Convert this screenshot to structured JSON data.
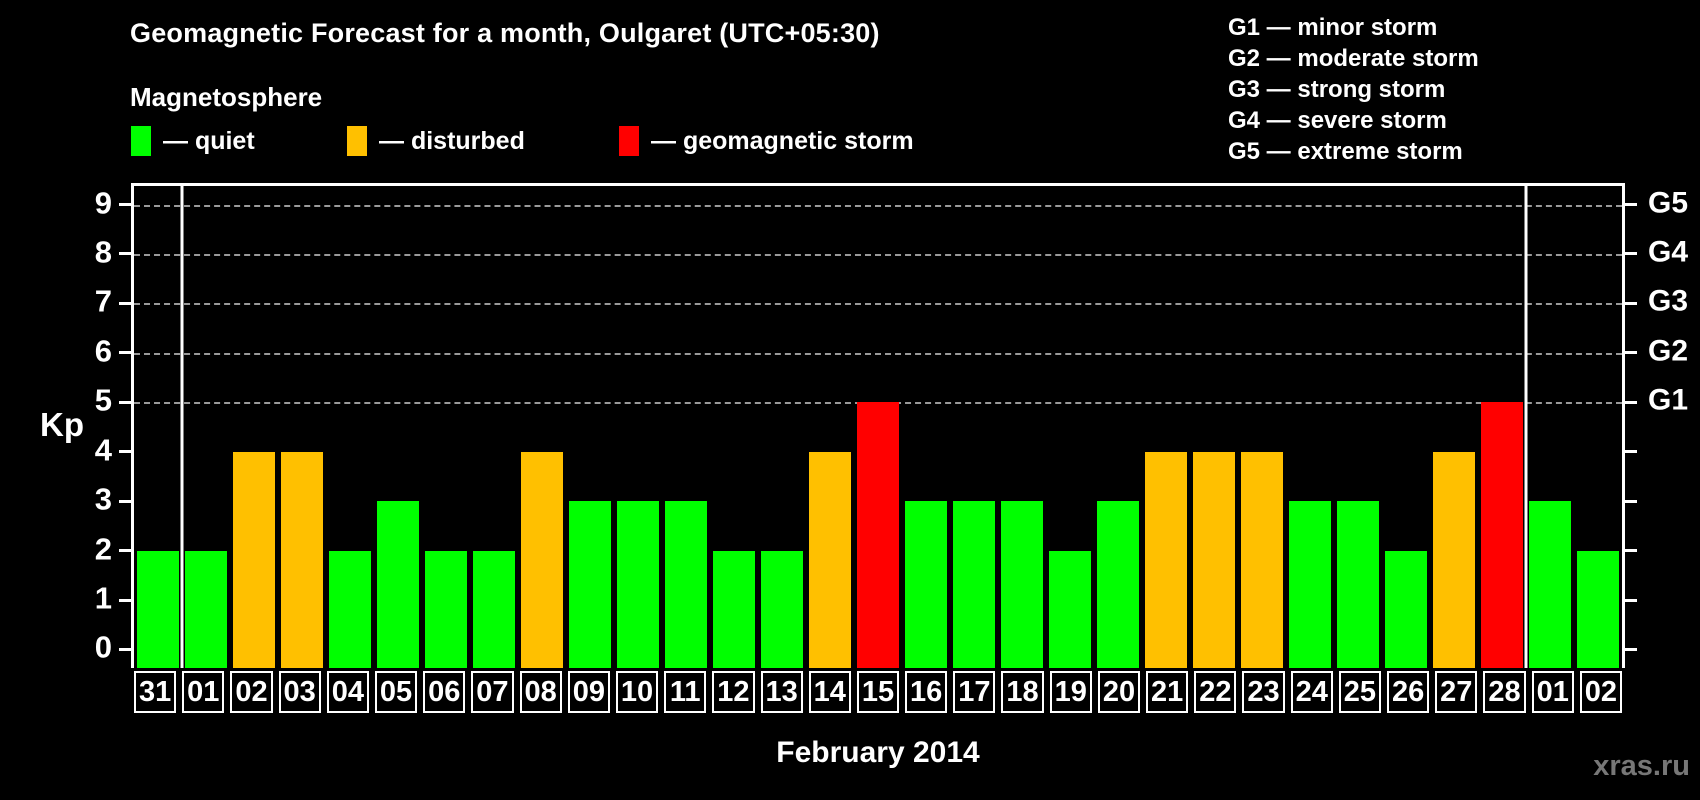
{
  "title": "Geomagnetic Forecast for a month, Oulgaret (UTC+05:30)",
  "legend": {
    "heading": "Magnetosphere",
    "items": [
      {
        "key": "quiet",
        "label": "— quiet",
        "color": "#00ff00"
      },
      {
        "key": "disturbed",
        "label": "— disturbed",
        "color": "#ffc000"
      },
      {
        "key": "storm",
        "label": "— geomagnetic storm",
        "color": "#ff0000"
      }
    ]
  },
  "storm_scale": [
    {
      "label": "G1 — minor storm"
    },
    {
      "label": "G2 — moderate storm"
    },
    {
      "label": "G3 — strong storm"
    },
    {
      "label": "G4 — severe storm"
    },
    {
      "label": "G5 — extreme storm"
    }
  ],
  "chart_data": {
    "type": "bar",
    "title": "Geomagnetic Forecast for a month, Oulgaret (UTC+05:30)",
    "xlabel": "February 2014",
    "ylabel": "Kp",
    "ylim": [
      0,
      9
    ],
    "categories": [
      "31",
      "01",
      "02",
      "03",
      "04",
      "05",
      "06",
      "07",
      "08",
      "09",
      "10",
      "11",
      "12",
      "13",
      "14",
      "15",
      "16",
      "17",
      "18",
      "19",
      "20",
      "21",
      "22",
      "23",
      "24",
      "25",
      "26",
      "27",
      "28",
      "01",
      "02"
    ],
    "values": [
      2,
      2,
      4,
      4,
      2,
      3,
      2,
      2,
      4,
      3,
      3,
      3,
      2,
      2,
      4,
      5,
      3,
      3,
      3,
      2,
      3,
      4,
      4,
      4,
      3,
      3,
      2,
      4,
      5,
      3,
      2
    ],
    "thresholds": {
      "disturbed_min": 4,
      "storm_min": 5
    },
    "colors": {
      "quiet": "#00ff00",
      "disturbed": "#ffc000",
      "storm": "#ff0000"
    },
    "y_ticks": [
      0,
      1,
      2,
      3,
      4,
      5,
      6,
      7,
      8,
      9
    ],
    "gridlines": [
      5,
      6,
      7,
      8,
      9
    ],
    "grid_color": "#9a9a9a",
    "right_axis": [
      {
        "kp": 5,
        "label": "G1"
      },
      {
        "kp": 6,
        "label": "G2"
      },
      {
        "kp": 7,
        "label": "G3"
      },
      {
        "kp": 8,
        "label": "G4"
      },
      {
        "kp": 9,
        "label": "G5"
      }
    ],
    "month_separator_indices": [
      1,
      29
    ],
    "legend_position": "top"
  },
  "footer": {
    "watermark": "xras.ru"
  }
}
